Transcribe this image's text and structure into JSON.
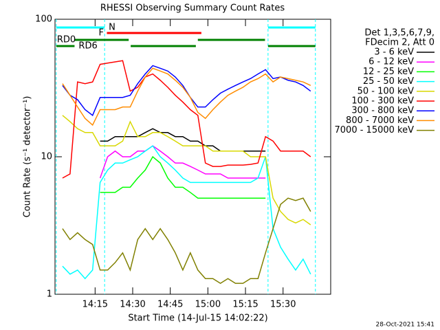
{
  "chart_data": {
    "type": "line",
    "title": "RHESSI Observing Summary Count Rates",
    "xlabel": "Start Time (14-Jul-15 14:02:22)",
    "ylabel": "Count Rate (s⁻¹ detector⁻¹)",
    "legend_header": [
      "Det 1,3,5,6,7,9,",
      "FDecim 2, Att 0"
    ],
    "footer": "28-Oct-2021 15:41",
    "log_y": true,
    "xlim": [
      839,
      949
    ],
    "ylim": [
      1,
      100
    ],
    "xticks": [
      {
        "value": 855,
        "label": "14:15"
      },
      {
        "value": 870,
        "label": "14:30"
      },
      {
        "value": 885,
        "label": "14:45"
      },
      {
        "value": 900,
        "label": "15:00"
      },
      {
        "value": 915,
        "label": "15:15"
      },
      {
        "value": 930,
        "label": "15:30"
      }
    ],
    "yticks": [
      1,
      10,
      100
    ],
    "annotations": [
      {
        "text": "N",
        "color": "#00ffff"
      },
      {
        "text": "F",
        "color": "#ff0000"
      },
      {
        "text": "RD0",
        "color": "#008000"
      },
      {
        "text": "RD6",
        "color": "#008000"
      }
    ],
    "night_periods": [
      [
        839.5,
        858.8
      ],
      [
        924,
        942.9
      ]
    ],
    "flare_periods": [
      [
        859.7,
        897.4
      ]
    ],
    "rd0_periods": [
      [
        839.5,
        846.8
      ],
      [
        869.2,
        895.2
      ],
      [
        924,
        942.9
      ]
    ],
    "rd6_periods": [
      [
        846.8,
        868.4
      ],
      [
        896,
        922.8
      ]
    ],
    "x": [
      842,
      845,
      848,
      851,
      854,
      857,
      860,
      863,
      866,
      869,
      872,
      875,
      878,
      881,
      884,
      887,
      890,
      893,
      896,
      899,
      902,
      905,
      908,
      911,
      914,
      917,
      920,
      923,
      926,
      929,
      932,
      935,
      938,
      941
    ],
    "series": [
      {
        "name": "3 - 6 keV",
        "color": "#000000",
        "values": [
          null,
          null,
          null,
          null,
          null,
          13,
          13,
          14,
          14,
          14,
          14,
          15,
          16,
          15,
          15,
          14,
          14,
          13,
          13,
          12,
          12,
          11,
          11,
          11,
          11,
          11,
          11,
          11,
          null,
          null,
          null,
          null,
          null,
          null
        ]
      },
      {
        "name": "6 - 12 keV",
        "color": "#ff00ff",
        "values": [
          null,
          null,
          null,
          null,
          null,
          7,
          10,
          11,
          10,
          10,
          11,
          11,
          12,
          11,
          10,
          9,
          9,
          8.5,
          8,
          7.5,
          7.5,
          7.5,
          7,
          7,
          7,
          7,
          7,
          7,
          null,
          null,
          null,
          null,
          null,
          null
        ]
      },
      {
        "name": "12 - 25 keV",
        "color": "#00ff00",
        "values": [
          null,
          null,
          null,
          null,
          null,
          5.5,
          5.5,
          5.5,
          6,
          6,
          7,
          8,
          10,
          9,
          7,
          6,
          6,
          5.5,
          5,
          5,
          5,
          5,
          5,
          5,
          5,
          5,
          5,
          5,
          null,
          null,
          null,
          null,
          null,
          null
        ]
      },
      {
        "name": "25 - 50 keV",
        "color": "#00ffff",
        "values": [
          1.6,
          1.4,
          1.5,
          1.3,
          1.5,
          6.5,
          8,
          9,
          9,
          9.5,
          10,
          11,
          12,
          10,
          9,
          8,
          7,
          6.5,
          6.5,
          6.5,
          6.5,
          6.5,
          6.5,
          6.5,
          6.5,
          6.5,
          7,
          10,
          3,
          2.2,
          1.8,
          1.5,
          1.8,
          1.4
        ]
      },
      {
        "name": "50 - 100 keV",
        "color": "#d8d800",
        "values": [
          20,
          18,
          16,
          15,
          15,
          12,
          12,
          12,
          13,
          18,
          14,
          14,
          15,
          15,
          14,
          13,
          12,
          12,
          12,
          12,
          11,
          11,
          11,
          11,
          11,
          10,
          10,
          10,
          5,
          4,
          3.5,
          3.3,
          3.5,
          3.2
        ]
      },
      {
        "name": "100 - 300 keV",
        "color": "#ff0000",
        "values": [
          7,
          7.5,
          35,
          34,
          35,
          47,
          48,
          49,
          50,
          30,
          32,
          38,
          40,
          36,
          32,
          28,
          25,
          22,
          20,
          9,
          8.5,
          8.5,
          8.7,
          8.7,
          8.7,
          8.8,
          9,
          14,
          13,
          11,
          11,
          11,
          11,
          10
        ]
      },
      {
        "name": "300 - 800 keV",
        "color": "#0000ff",
        "values": [
          33,
          28,
          26,
          22,
          20,
          27,
          27,
          27,
          27,
          28,
          34,
          40,
          46,
          44,
          42,
          38,
          33,
          27,
          23,
          23,
          26,
          29,
          31,
          33,
          35,
          37,
          40,
          43,
          37,
          38,
          36,
          35,
          33,
          30
        ]
      },
      {
        "name": "800 - 7000 keV",
        "color": "#ff8c00",
        "values": [
          34,
          28,
          23,
          19,
          17,
          22,
          22,
          22,
          23,
          23,
          30,
          38,
          44,
          42,
          40,
          36,
          32,
          27,
          21,
          19,
          22,
          25,
          28,
          30,
          32,
          35,
          37,
          40,
          35,
          38,
          37,
          36,
          35,
          33
        ]
      },
      {
        "name": "7000 - 15000 keV",
        "color": "#808000",
        "values": [
          3,
          2.5,
          2.8,
          2.5,
          2.3,
          1.5,
          1.5,
          1.7,
          2,
          1.5,
          2.5,
          3,
          2.5,
          3,
          2.5,
          2,
          1.5,
          2,
          1.5,
          1.3,
          1.3,
          1.2,
          1.3,
          1.2,
          1.2,
          1.3,
          1.3,
          2,
          3,
          4.5,
          5,
          4.8,
          5,
          4
        ]
      }
    ]
  }
}
